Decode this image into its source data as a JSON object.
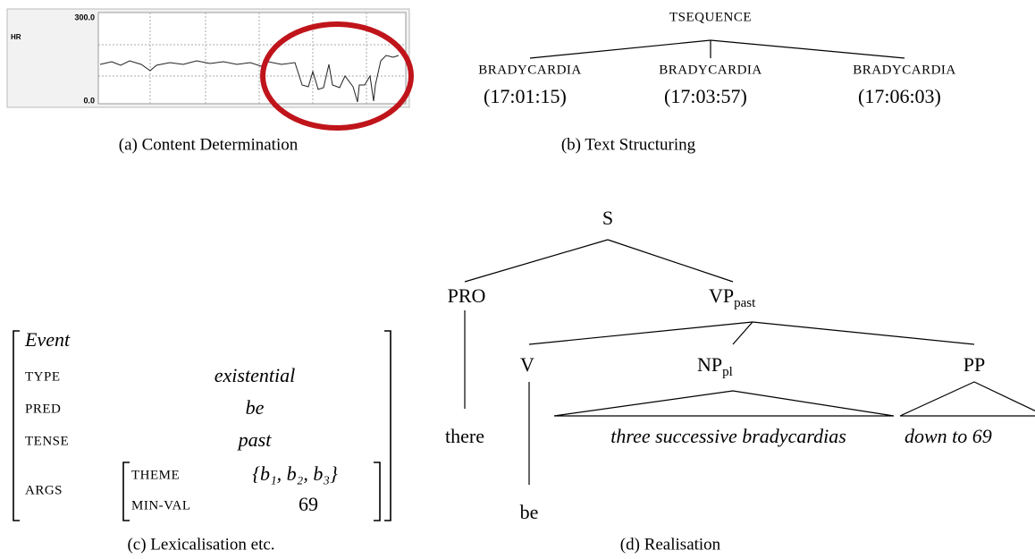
{
  "panel_a": {
    "axis_label": "HR",
    "top_label": "300.0",
    "bottom_label": "0.0",
    "caption": "(a) Content Determination"
  },
  "panel_b": {
    "root": "TSEQUENCE",
    "children": [
      {
        "label": "BRADYCARDIA",
        "time": "(17:01:15)"
      },
      {
        "label": "BRADYCARDIA",
        "time": "(17:03:57)"
      },
      {
        "label": "BRADYCARDIA",
        "time": "(17:06:03)"
      }
    ],
    "caption": "(b) Text Structuring"
  },
  "panel_c": {
    "head": "Event",
    "rows": [
      {
        "feature": "TYPE",
        "value": "existential"
      },
      {
        "feature": "PRED",
        "value": "be"
      },
      {
        "feature": "TENSE",
        "value": "past"
      }
    ],
    "args": {
      "feature": "ARGS",
      "rows": [
        {
          "feature": "THEME",
          "value": "{b₁, b₂, b₃}"
        },
        {
          "feature": "MIN-VAL",
          "value": "69"
        }
      ]
    },
    "caption": "(c) Lexicalisation etc."
  },
  "panel_d": {
    "s": "S",
    "pro": "PRO",
    "vp": {
      "label": "VP",
      "sub": "past"
    },
    "v": "V",
    "np": {
      "label": "NP",
      "sub": "pl"
    },
    "pp": "PP",
    "there": "there",
    "be": "be",
    "np_text": "three successive bradycardias",
    "pp_text": "down to 69",
    "caption": "(d) Realisation"
  }
}
